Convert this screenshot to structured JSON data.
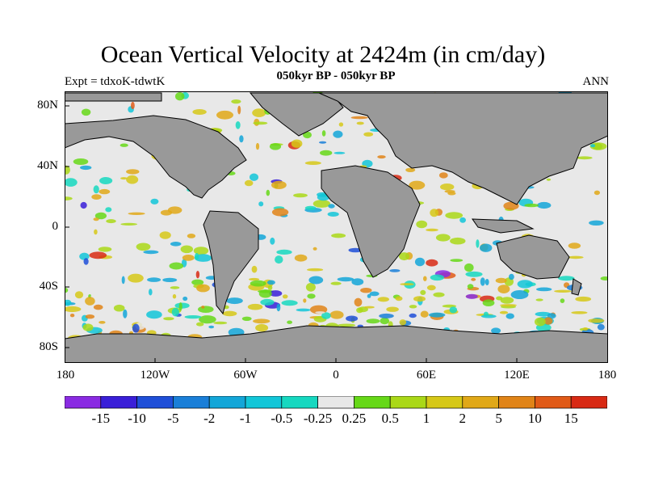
{
  "header": {
    "title": "Ocean Vertical Velocity at 2424m (in cm/day)",
    "subtitle": "050kyr BP - 050kyr BP",
    "expt": "Expt = tdxoK-tdwtK",
    "season": "ANN"
  },
  "map": {
    "land_color": "#999999",
    "near_zero_color": "#e8e8e8",
    "lat_labels": [
      "80N",
      "40N",
      "0",
      "40S",
      "80S"
    ],
    "lon_labels": [
      "180",
      "120W",
      "60W",
      "0",
      "60E",
      "120E",
      "180"
    ]
  },
  "colorbar": {
    "colors": [
      "#8a2be2",
      "#3a1fd8",
      "#1f4fd8",
      "#1a7fd8",
      "#13a6d8",
      "#12c6d8",
      "#16d8c0",
      "#e8e8e8",
      "#66d818",
      "#aad818",
      "#d6c818",
      "#e0a818",
      "#e08418",
      "#e05a18",
      "#d82a14"
    ],
    "labels": [
      "-15",
      "-10",
      "-5",
      "-2",
      "-1",
      "-0.5",
      "-0.25",
      "0.25",
      "0.5",
      "1",
      "2",
      "5",
      "10",
      "15"
    ]
  }
}
